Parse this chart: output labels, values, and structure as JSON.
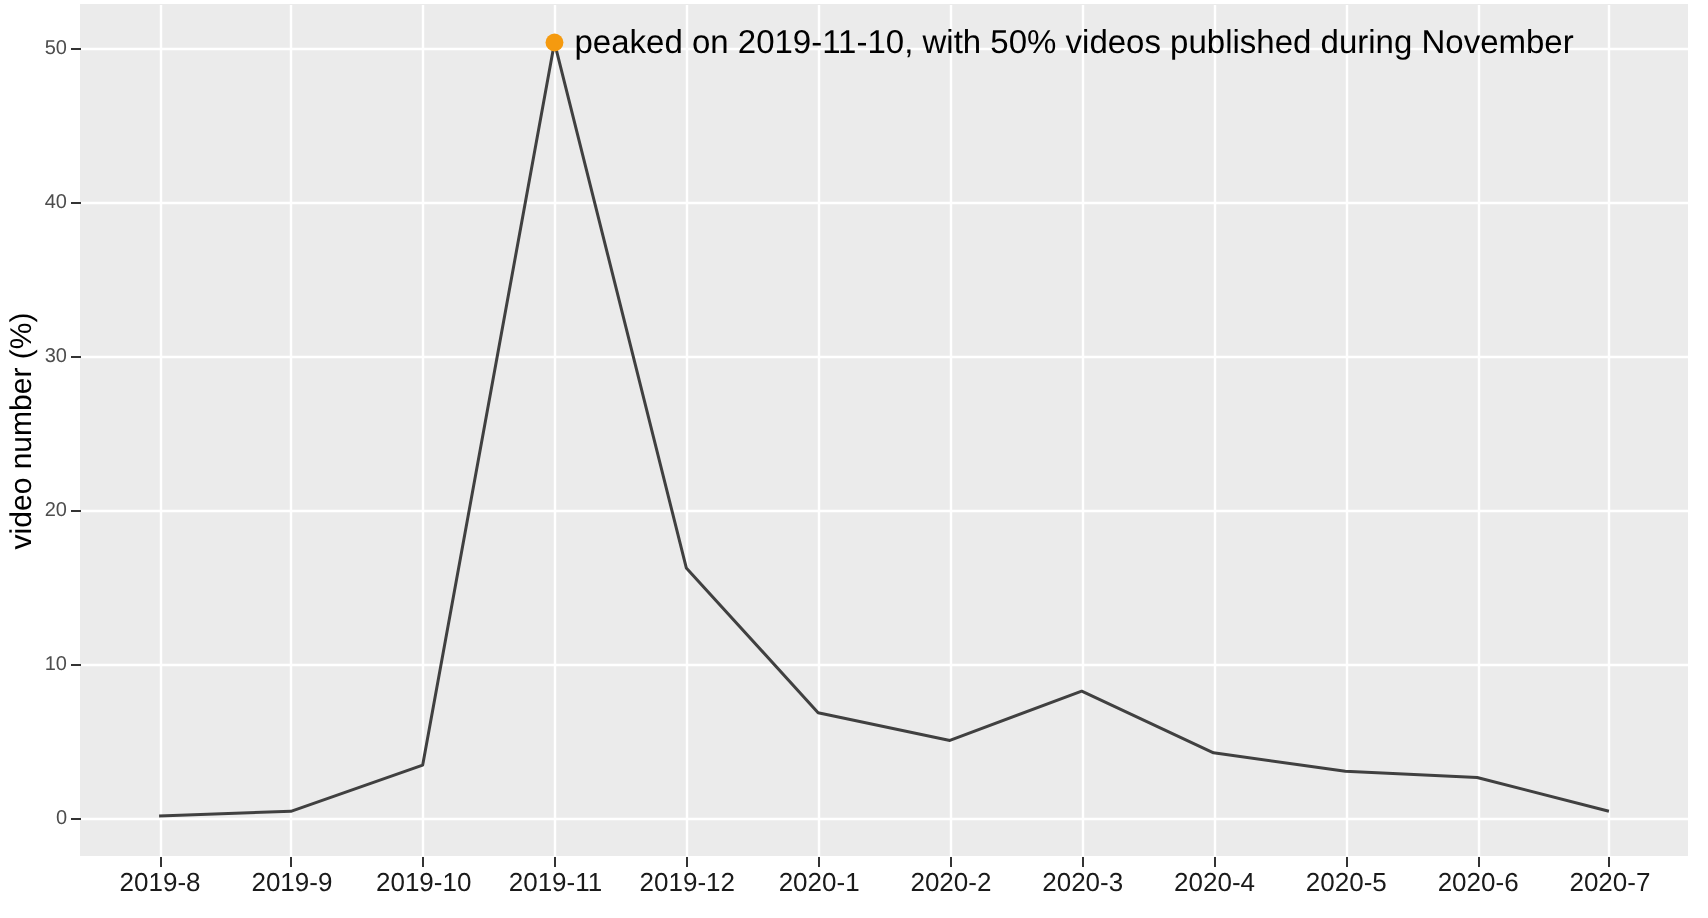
{
  "chart_data": {
    "type": "line",
    "ylabel": "video number (%)",
    "categories": [
      "2019-8",
      "2019-9",
      "2019-10",
      "2019-11",
      "2019-12",
      "2020-1",
      "2020-2",
      "2020-3",
      "2020-4",
      "2020-5",
      "2020-6",
      "2020-7"
    ],
    "series": [
      {
        "color": "#404040",
        "values": [
          0.1,
          0.4,
          3.4,
          50.3,
          16.2,
          6.8,
          5.0,
          8.2,
          4.2,
          3.0,
          2.6,
          0.4
        ]
      },
      {
        "type": "scatter",
        "marker": "circle",
        "color": "#f59a0f",
        "values": [
          null,
          null,
          null,
          50.3,
          null,
          null,
          null,
          null,
          null,
          null,
          null,
          null
        ]
      }
    ],
    "ylim": [
      -2.5,
      52.8
    ],
    "yticks": [
      0,
      10,
      20,
      30,
      40,
      50
    ],
    "grid": true,
    "line_style": "solid",
    "annotations": [
      {
        "text": "peaked on 2019-11-10,  with 50% videos published during November",
        "x": "2019-11",
        "y": 50.3
      }
    ]
  }
}
